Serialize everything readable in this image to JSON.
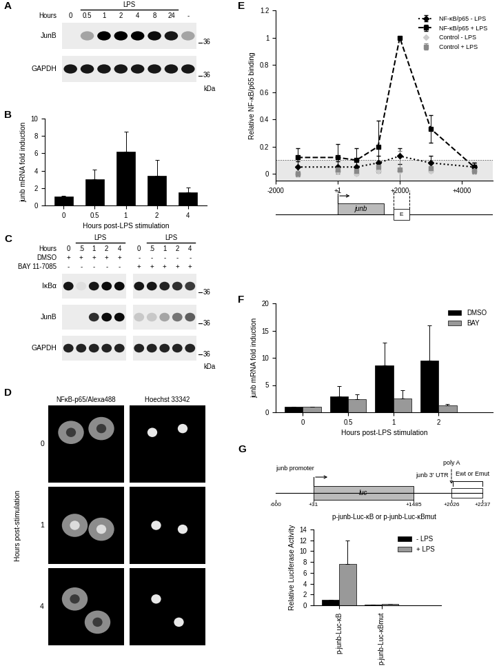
{
  "blots": [
    {
      "panel": "A",
      "treatment": "LPS",
      "treated_lanes": [
        [
          1,
          6
        ]
      ],
      "lane_axis": "Hours",
      "lanes": [
        "0",
        "0.5",
        "1",
        "2",
        "4",
        "8",
        "24",
        "-"
      ],
      "lane_groups": [
        8
      ],
      "conditions": [],
      "rows": [
        {
          "name": "JunB",
          "marker": 36,
          "intensity": [
            0,
            0.3,
            1,
            1,
            1,
            0.95,
            0.9,
            0.3
          ]
        },
        {
          "name": "GAPDH",
          "marker": 36,
          "intensity": [
            0.9,
            0.9,
            0.9,
            0.9,
            0.9,
            0.9,
            0.9,
            0.9
          ]
        }
      ],
      "marker_unit": "kDa"
    },
    {
      "panel": "C",
      "treatment": "LPS",
      "treated_lanes": [
        [
          1,
          4
        ],
        [
          6,
          9
        ]
      ],
      "lane_axis": "Hours",
      "lanes": [
        "0",
        ".5",
        "1",
        "2",
        "4",
        "0",
        ".5",
        "1",
        "2",
        "4"
      ],
      "lane_groups": [
        5,
        5
      ],
      "conditions": [
        {
          "name": "DMSO",
          "signs": [
            "+",
            "+",
            "+",
            "+",
            "+",
            "-",
            "-",
            "-",
            "-",
            "-"
          ]
        },
        {
          "name": "BAY 11-7085",
          "signs": [
            "-",
            "-",
            "-",
            "-",
            "-",
            "+",
            "+",
            "+",
            "+",
            "+"
          ]
        }
      ],
      "rows": [
        {
          "name": "IκBα",
          "marker": 36,
          "intensity": [
            0.9,
            0.05,
            0.9,
            0.95,
            0.95,
            0.9,
            0.9,
            0.85,
            0.8,
            0.75
          ]
        },
        {
          "name": "JunB",
          "marker": 36,
          "intensity": [
            0,
            0,
            0.8,
            0.95,
            0.95,
            0.15,
            0.15,
            0.3,
            0.5,
            0.6
          ]
        },
        {
          "name": "GAPDH",
          "marker": 36,
          "intensity": [
            0.85,
            0.85,
            0.85,
            0.85,
            0.85,
            0.85,
            0.85,
            0.85,
            0.85,
            0.85
          ]
        }
      ],
      "marker_unit": "kDa"
    }
  ],
  "images": {
    "panel": "D",
    "columns": [
      "NFκB-p65/Alexa488",
      "Hoechst 33342"
    ],
    "rows": [
      "0",
      "1",
      "4"
    ],
    "row_axis": "Hours post-stimulation"
  },
  "chart_data": [
    {
      "panel": "B",
      "type": "bar",
      "categories": [
        "0",
        "0.5",
        "1",
        "2",
        "4"
      ],
      "values": [
        1,
        3,
        6.2,
        3.4,
        1.5
      ],
      "errors": [
        0.1,
        1.1,
        2.3,
        1.8,
        0.6
      ],
      "color": "#000000",
      "ylim": [
        0,
        10
      ],
      "yticks": [
        0,
        2,
        4,
        6,
        8,
        10
      ],
      "x_label": "Hours post-LPS stimulation",
      "y_label": "junb mRNA fold induction"
    },
    {
      "panel": "E",
      "type": "line",
      "x": [
        -1300,
        1,
        600,
        1300,
        2000,
        3000,
        4400
      ],
      "series": [
        {
          "name": "NF-κB/p65 - LPS",
          "color": "#000000",
          "marker": "diamond",
          "line_style": "dotted",
          "values": [
            0.05,
            0.05,
            0.05,
            0.08,
            0.13,
            0.08,
            0.05
          ],
          "errors": [
            0.04,
            0.04,
            0.05,
            0.05,
            0.06,
            0.05,
            0.03
          ]
        },
        {
          "name": "NF-κB/p65 + LPS",
          "color": "#000000",
          "marker": "square",
          "line_style": "dashed",
          "values": [
            0.12,
            0.12,
            0.1,
            0.2,
            1,
            0.33,
            0.05
          ],
          "errors": [
            0.07,
            0.1,
            0.09,
            0.19,
            0,
            0.1,
            0.03
          ]
        },
        {
          "name": "Control - LPS",
          "color": "#cccccc",
          "marker": "diamond",
          "line_style": "none",
          "values": [
            0,
            0.02,
            0,
            0.02,
            0.02,
            0.02,
            0.02
          ]
        },
        {
          "name": "Control + LPS",
          "color": "#888888",
          "marker": "square",
          "line_style": "none",
          "values": [
            0,
            0.03,
            0.02,
            0.05,
            0.03,
            0.04,
            0.02
          ],
          "errors": [
            0.02,
            0.03,
            0.03,
            0.04,
            0.14,
            0.03,
            0.02
          ]
        }
      ],
      "xlim": [
        -2000,
        5000
      ],
      "xticks": [
        -2000,
        {
          "value": 1,
          "label": "+1"
        },
        {
          "value": 2000,
          "label": "+2000"
        },
        {
          "value": 4000,
          "label": "+4000"
        }
      ],
      "ylim": [
        -0.05,
        1.2
      ],
      "yticks": [
        0,
        0.2,
        0.4,
        0.6,
        0.8,
        1,
        1.2
      ],
      "y_label": "Relative NF-κB/p65 binding",
      "legend": "upper right",
      "shaded_band": [
        -0.05,
        0.1
      ],
      "gene": {
        "label": "junb",
        "start": 1,
        "end": 1485
      },
      "element": {
        "label": "E",
        "start": 1800,
        "end": 2300
      }
    },
    {
      "panel": "F",
      "type": "bar",
      "categories": [
        "0",
        "0.5",
        "1",
        "2"
      ],
      "series": [
        {
          "name": "DMSO",
          "color": "#000000",
          "values": [
            1,
            2.9,
            8.6,
            9.5
          ],
          "errors": [
            0.05,
            1.9,
            4.2,
            6.4
          ]
        },
        {
          "name": "BAY",
          "color": "#999999",
          "values": [
            1,
            2.4,
            2.5,
            1.3
          ],
          "errors": [
            0.05,
            0.9,
            1.6,
            0.2
          ]
        }
      ],
      "ylim": [
        0,
        20
      ],
      "yticks": [
        0,
        5,
        10,
        15,
        20
      ],
      "legend": "upper right",
      "x_label": "Hours post-LPS stimulation",
      "y_label": "junb mRNA fold induction"
    },
    {
      "panel": "G",
      "type": "bar",
      "categories": [
        "p-junb-Luc-κB",
        "p-junb-Luc-κBmut"
      ],
      "series": [
        {
          "name": "- LPS",
          "color": "#000000",
          "values": [
            1,
            0.15
          ],
          "errors": [
            0.05,
            0.03
          ]
        },
        {
          "name": "+ LPS",
          "color": "#999999",
          "values": [
            7.6,
            0.2
          ],
          "errors": [
            4.4,
            0.05
          ]
        }
      ],
      "ylim": [
        0,
        14
      ],
      "yticks": [
        0,
        2,
        4,
        6,
        8,
        10,
        12,
        14
      ],
      "legend": "upper right",
      "y_label": "Relative Luciferase Activity",
      "construct": {
        "name": "p-junb-Luc-κB or p-junb-Luc-κBmut",
        "promoter": "junb promoter",
        "reporter": "luc",
        "utr": "junb 3' UTR",
        "polya": "poly A",
        "element": "Ewt or Emut",
        "positions": [
          "-600",
          "+31",
          "+1485",
          "+2026",
          "+2237"
        ]
      }
    }
  ]
}
